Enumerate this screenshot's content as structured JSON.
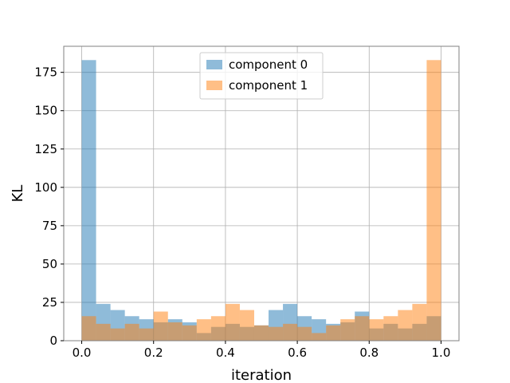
{
  "chart_data": {
    "type": "bar",
    "subtype": "histogram-overlay",
    "title": "",
    "xlabel": "iteration",
    "ylabel": "KL",
    "xlim": [
      -0.05,
      1.05
    ],
    "ylim": [
      0,
      192
    ],
    "grid": true,
    "legend_position": "top-center",
    "bins": {
      "start": 0.0,
      "width": 0.04,
      "count": 25
    },
    "x_ticks": [
      0.0,
      0.2,
      0.4,
      0.6,
      0.8,
      1.0
    ],
    "x_tick_labels": [
      "0.0",
      "0.2",
      "0.4",
      "0.6",
      "0.8",
      "1.0"
    ],
    "y_ticks": [
      0,
      25,
      50,
      75,
      100,
      125,
      150,
      175
    ],
    "y_tick_labels": [
      "0",
      "25",
      "50",
      "75",
      "100",
      "125",
      "150",
      "175"
    ],
    "series": [
      {
        "name": "component 0",
        "color": "#1f77b4",
        "alpha": 0.5,
        "values": [
          183,
          24,
          20,
          16,
          14,
          12,
          14,
          12,
          5,
          9,
          11,
          9,
          10,
          20,
          24,
          16,
          14,
          11,
          12,
          19,
          8,
          11,
          8,
          11,
          16
        ]
      },
      {
        "name": "component 1",
        "color": "#ff7f0e",
        "alpha": 0.5,
        "values": [
          16,
          11,
          8,
          11,
          8,
          19,
          12,
          10,
          14,
          16,
          24,
          20,
          10,
          9,
          11,
          9,
          5,
          10,
          14,
          16,
          14,
          16,
          20,
          24,
          183
        ]
      }
    ]
  }
}
